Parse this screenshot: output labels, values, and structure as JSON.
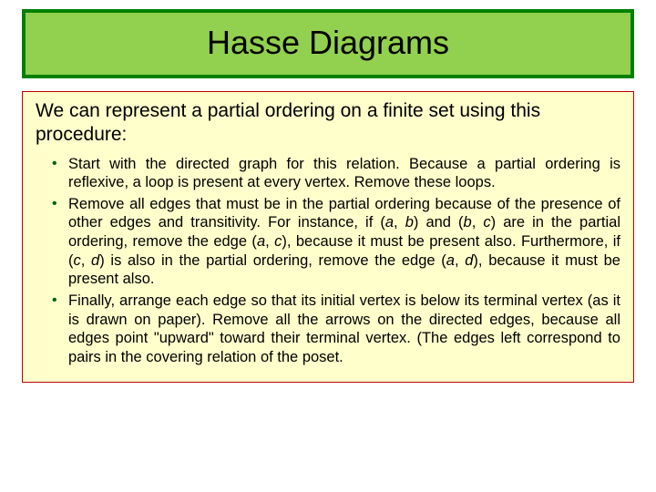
{
  "title": "Hasse Diagrams",
  "intro": "We can represent a partial ordering on a finite set using this procedure:",
  "bullets": [
    {
      "pre": "Start with the directed graph for this relation. Because a partial ordering is reflexive, a loop is present at every vertex. ",
      "emph": "Remove",
      "post": " these loops."
    },
    {
      "html": "Remove all  edges that must be in the partial ordering because of the presence of other edges and transitivity. For instance, if (<span class=\"italic\">a</span>, <span class=\"italic\">b</span>) and (<span class=\"italic\">b</span>, <span class=\"italic\">c</span>) are in the partial ordering, remove the edge (<span class=\"italic\">a</span>, <span class=\"italic\">c</span>), because it must be present also. Furthermore, if (<span class=\"italic\">c</span>, <span class=\"italic\">d</span>) is also in the partial ordering, remove the edge (<span class=\"italic\">a</span>, <span class=\"italic\">d</span>), because it must be present also."
    },
    {
      "html": "Finally, arrange each edge so that its initial vertex is below its terminal vertex (as it is drawn on paper). Remove all the arrows on the directed edges, because all edges point \"upward\" toward their terminal vertex. (The edges left correspond to pairs in the covering relation of the poset."
    }
  ],
  "colors": {
    "title_bg": "#92d050",
    "title_border": "#008000",
    "content_bg": "#ffffcc",
    "content_border": "#c00000",
    "bullet_color": "#006400",
    "text_color": "#000000"
  }
}
